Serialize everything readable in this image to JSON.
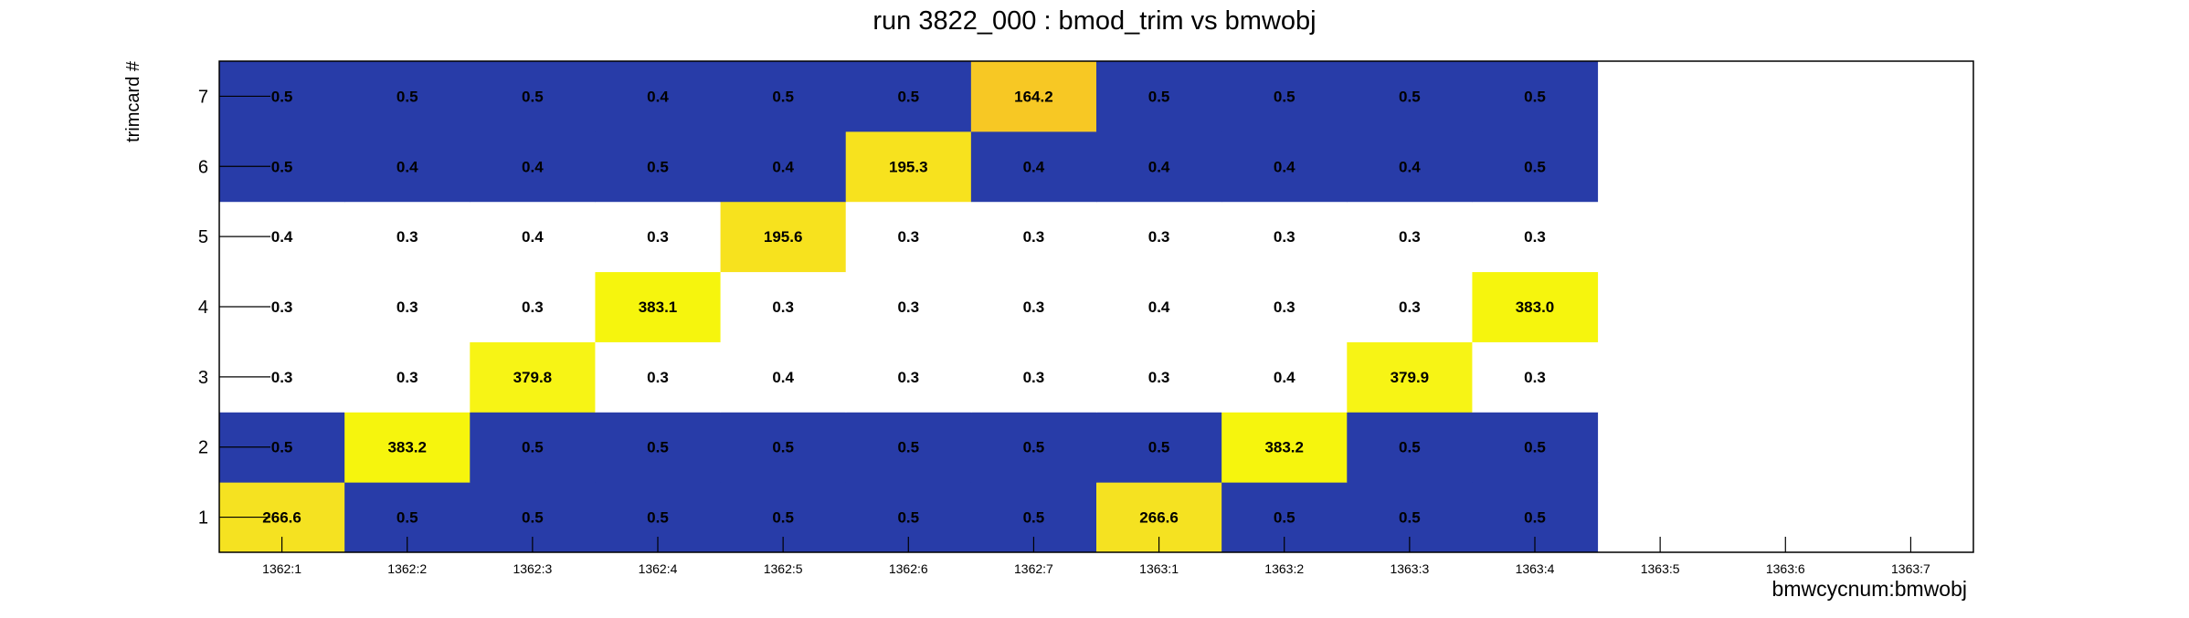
{
  "chart_data": {
    "type": "heatmap",
    "title": "run 3822_000 : bmod_trim vs bmwobj",
    "xlabel": "bmwcycnum:bmwobj",
    "ylabel": "trimcard #",
    "x_categories": [
      "1362:1",
      "1362:2",
      "1362:3",
      "1362:4",
      "1362:5",
      "1362:6",
      "1362:7",
      "1363:1",
      "1363:2",
      "1363:3",
      "1363:4",
      "1363:5",
      "1363:6",
      "1363:7"
    ],
    "y_categories": [
      "1",
      "2",
      "3",
      "4",
      "5",
      "6",
      "7"
    ],
    "values": [
      [
        266.6,
        0.5,
        0.5,
        0.5,
        0.5,
        0.5,
        0.5,
        266.6,
        0.5,
        0.5,
        0.5,
        null,
        null,
        null
      ],
      [
        0.5,
        383.2,
        0.5,
        0.5,
        0.5,
        0.5,
        0.5,
        0.5,
        383.2,
        0.5,
        0.5,
        null,
        null,
        null
      ],
      [
        0.3,
        0.3,
        379.8,
        0.3,
        0.4,
        0.3,
        0.3,
        0.3,
        0.4,
        379.9,
        0.3,
        null,
        null,
        null
      ],
      [
        0.3,
        0.3,
        0.3,
        383.1,
        0.3,
        0.3,
        0.3,
        0.4,
        0.3,
        0.3,
        383.0,
        null,
        null,
        null
      ],
      [
        0.4,
        0.3,
        0.4,
        0.3,
        195.6,
        0.3,
        0.3,
        0.3,
        0.3,
        0.3,
        0.3,
        null,
        null,
        null
      ],
      [
        0.5,
        0.4,
        0.4,
        0.5,
        0.4,
        195.3,
        0.4,
        0.4,
        0.4,
        0.4,
        0.5,
        null,
        null,
        null
      ],
      [
        0.5,
        0.5,
        0.5,
        0.4,
        0.5,
        0.5,
        164.2,
        0.5,
        0.5,
        0.5,
        0.5,
        null,
        null,
        null
      ]
    ],
    "low_value_fill": {
      "1": "#283ca8",
      "2": "#283ca8",
      "3": "#ffffff",
      "4": "#ffffff",
      "5": "#ffffff",
      "6": "#283ca8",
      "7": "#283ca8"
    },
    "colors": {
      "low_band": "#283ca8",
      "high_band": "#ffffff",
      "peak_383": "#f6f50d",
      "peak_380": "#f7f415",
      "peak_266": "#f5e221",
      "peak_195": "#f7e21e",
      "peak_164": "#f7c824",
      "frame": "#000000",
      "text": "#000000"
    },
    "grid": false,
    "legend": "none"
  }
}
